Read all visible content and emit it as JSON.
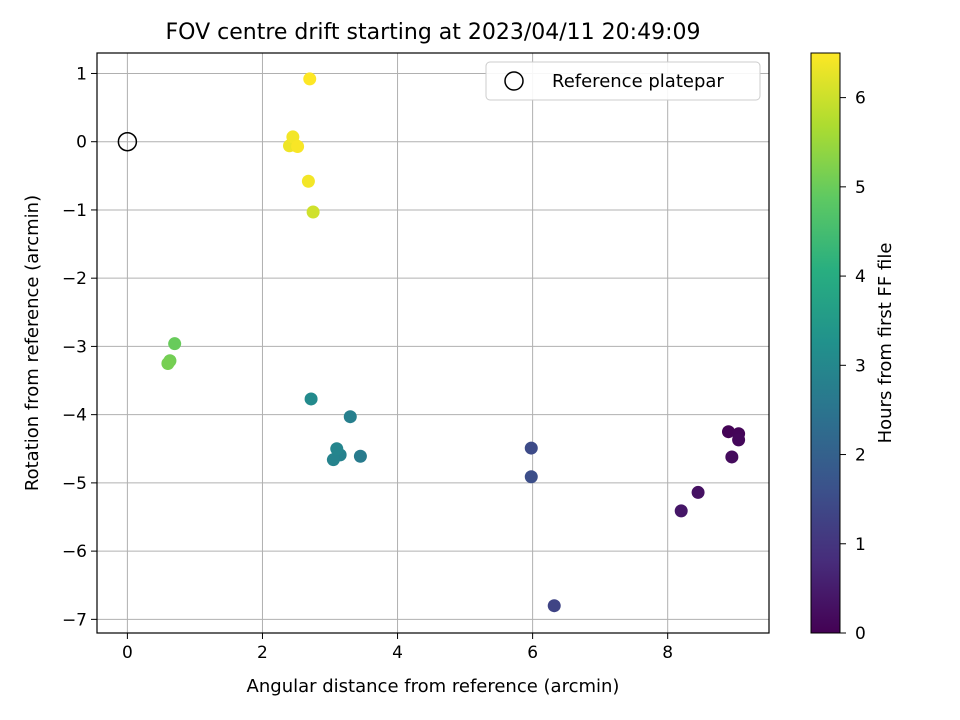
{
  "chart_data": {
    "type": "scatter",
    "title": "FOV centre drift starting at 2023/04/11 20:49:09",
    "xlabel": "Angular distance from reference (arcmin)",
    "ylabel": "Rotation from reference (arcmin)",
    "xlim": [
      -0.45,
      9.5
    ],
    "ylim": [
      -7.2,
      1.3
    ],
    "xticks": [
      0,
      2,
      4,
      6,
      8
    ],
    "yticks": [
      1,
      0,
      -1,
      -2,
      -3,
      -4,
      -5,
      -6,
      -7
    ],
    "xtick_labels": [
      "0",
      "2",
      "4",
      "6",
      "8"
    ],
    "ytick_labels": [
      "1",
      "0",
      "−1",
      "−2",
      "−3",
      "−4",
      "−5",
      "−6",
      "−7"
    ],
    "grid": true,
    "legend": {
      "position": "top-right",
      "entries": [
        "Reference platepar"
      ]
    },
    "reference_point": {
      "name": "Reference platepar",
      "x": 0,
      "y": 0
    },
    "colormap": "viridis",
    "colorbar": {
      "label": "Hours from first FF file",
      "range": [
        0,
        6.5
      ],
      "ticks": [
        0,
        1,
        2,
        3,
        4,
        5,
        6
      ],
      "tick_labels": [
        "0",
        "1",
        "2",
        "3",
        "4",
        "5",
        "6"
      ]
    },
    "points": [
      {
        "x": 8.9,
        "y": -4.25,
        "hours": 0.05
      },
      {
        "x": 9.05,
        "y": -4.28,
        "hours": 0.08
      },
      {
        "x": 9.05,
        "y": -4.37,
        "hours": 0.12
      },
      {
        "x": 8.95,
        "y": -4.62,
        "hours": 0.2
      },
      {
        "x": 8.45,
        "y": -5.14,
        "hours": 0.3
      },
      {
        "x": 8.2,
        "y": -5.41,
        "hours": 0.4
      },
      {
        "x": 6.32,
        "y": -6.8,
        "hours": 1.35
      },
      {
        "x": 5.98,
        "y": -4.49,
        "hours": 1.5
      },
      {
        "x": 5.98,
        "y": -4.91,
        "hours": 1.55
      },
      {
        "x": 3.45,
        "y": -4.61,
        "hours": 2.7
      },
      {
        "x": 3.3,
        "y": -4.03,
        "hours": 2.8
      },
      {
        "x": 3.15,
        "y": -4.59,
        "hours": 2.85
      },
      {
        "x": 3.05,
        "y": -4.66,
        "hours": 2.9
      },
      {
        "x": 3.1,
        "y": -4.5,
        "hours": 2.95
      },
      {
        "x": 2.72,
        "y": -3.77,
        "hours": 3.1
      },
      {
        "x": 0.7,
        "y": -2.96,
        "hours": 5.0
      },
      {
        "x": 0.63,
        "y": -3.21,
        "hours": 5.1
      },
      {
        "x": 0.6,
        "y": -3.25,
        "hours": 5.15
      },
      {
        "x": 2.75,
        "y": -1.03,
        "hours": 6.05
      },
      {
        "x": 2.68,
        "y": -0.58,
        "hours": 6.4
      },
      {
        "x": 2.4,
        "y": -0.06,
        "hours": 6.35
      },
      {
        "x": 2.5,
        "y": -0.06,
        "hours": 6.3
      },
      {
        "x": 2.45,
        "y": 0.07,
        "hours": 6.4
      },
      {
        "x": 2.52,
        "y": -0.07,
        "hours": 6.45
      },
      {
        "x": 2.7,
        "y": 0.92,
        "hours": 6.5
      }
    ]
  }
}
